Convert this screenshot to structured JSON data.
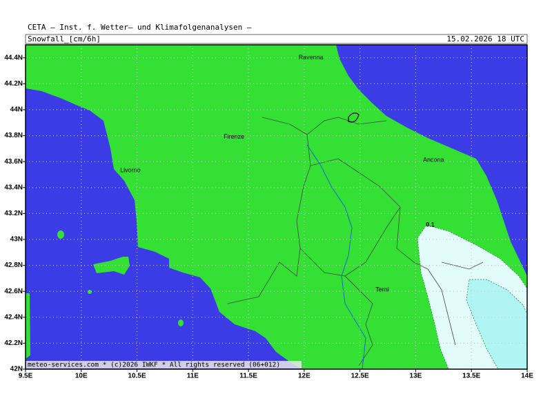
{
  "header": {
    "source": "CETA — Inst. f. Wetter— und Klimafolgenanalysen —",
    "title": "Snowfall_[cm/6h]",
    "date": "15.02.2026 18 UTC"
  },
  "map": {
    "lonlim": [
      9.5,
      14
    ],
    "latlim": [
      42,
      44.5
    ],
    "lonticks": [
      {
        "value": 9.5,
        "label": "9.5E"
      },
      {
        "value": 10,
        "label": "10E"
      },
      {
        "value": 10.5,
        "label": "10.5E"
      },
      {
        "value": 11,
        "label": "11E"
      },
      {
        "value": 11.5,
        "label": "11.5E"
      },
      {
        "value": 12,
        "label": "12E"
      },
      {
        "value": 12.5,
        "label": "12.5E"
      },
      {
        "value": 13,
        "label": "13E"
      },
      {
        "value": 13.5,
        "label": "13.5E"
      },
      {
        "value": 14,
        "label": "14E"
      }
    ],
    "latticks": [
      {
        "value": 42,
        "label": "42N"
      },
      {
        "value": 42.2,
        "label": "42.2N"
      },
      {
        "value": 42.4,
        "label": "42.4N"
      },
      {
        "value": 42.6,
        "label": "42.6N"
      },
      {
        "value": 42.8,
        "label": "42.8N"
      },
      {
        "value": 43,
        "label": "43N"
      },
      {
        "value": 43.2,
        "label": "43.2N"
      },
      {
        "value": 43.4,
        "label": "43.4N"
      },
      {
        "value": 43.6,
        "label": "43.6N"
      },
      {
        "value": 43.8,
        "label": "43.8N"
      },
      {
        "value": 44,
        "label": "44N"
      },
      {
        "value": 44.2,
        "label": "44.2N"
      },
      {
        "value": 44.4,
        "label": "44.4N"
      }
    ],
    "cities": [
      {
        "name": "Ravenna",
        "lon": 12.06,
        "lat": 44.4
      },
      {
        "name": "Firenze",
        "lon": 11.37,
        "lat": 43.79
      },
      {
        "name": "Livorno",
        "lon": 10.44,
        "lat": 43.53
      },
      {
        "name": "Ancona",
        "lon": 13.16,
        "lat": 43.61
      },
      {
        "name": "Terni",
        "lon": 12.7,
        "lat": 42.61
      }
    ],
    "contour_label": {
      "text": "0.1",
      "lon": 13.13,
      "lat": 43.11
    },
    "copyright": "meteo-services.com * (c)2026 IWKF * All rights reserved (06+012)"
  }
}
